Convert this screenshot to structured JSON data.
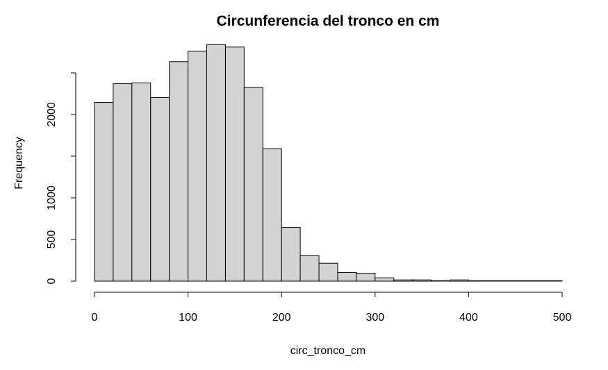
{
  "chart_data": {
    "type": "bar",
    "title": "Circunferencia del tronco en cm",
    "xlabel": "circ_tronco_cm",
    "ylabel": "Frequency",
    "bin_edges": [
      0,
      20,
      40,
      60,
      80,
      100,
      120,
      140,
      160,
      180,
      200,
      220,
      240,
      260,
      280,
      300,
      320,
      340,
      360,
      380,
      400,
      420,
      440,
      460,
      480,
      500
    ],
    "values": [
      2145,
      2370,
      2380,
      2205,
      2635,
      2760,
      2840,
      2810,
      2325,
      1590,
      645,
      305,
      215,
      105,
      95,
      40,
      15,
      15,
      5,
      15,
      5,
      5,
      5,
      5,
      5
    ],
    "xlim": [
      0,
      500
    ],
    "ylim": [
      0,
      2500
    ],
    "xticks": [
      0,
      100,
      200,
      300,
      400,
      500
    ],
    "yticks": [
      0,
      500,
      1000,
      2000
    ],
    "ytick_labels": [
      "0",
      "500",
      "1000",
      "2000"
    ],
    "grid": false,
    "colors": {
      "bar_fill": "#d3d3d3",
      "bar_stroke": "#000000"
    }
  }
}
